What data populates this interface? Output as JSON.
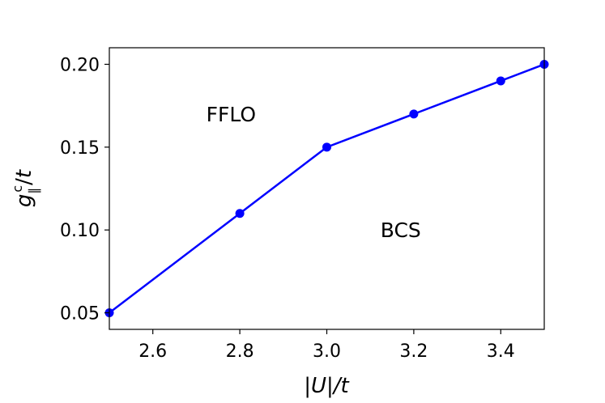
{
  "chart_data": {
    "type": "line",
    "x": [
      2.5,
      2.8,
      3.0,
      3.2,
      3.4,
      3.5
    ],
    "series": [
      {
        "values": [
          0.05,
          0.11,
          0.15,
          0.17,
          0.19,
          0.2
        ],
        "color": "#0000ff",
        "marker": "circle"
      }
    ],
    "xlabel": "|U|/t",
    "ylabel": "g∥c/t",
    "xlim": [
      2.5,
      3.5
    ],
    "ylim": [
      0.04,
      0.21
    ],
    "xticks": [
      2.6,
      2.8,
      3.0,
      3.2,
      3.4
    ],
    "xtick_labels": [
      "2.6",
      "2.8",
      "3.0",
      "3.2",
      "3.4"
    ],
    "yticks": [
      0.05,
      0.1,
      0.15,
      0.2
    ],
    "ytick_labels": [
      "0.05",
      "0.10",
      "0.15",
      "0.20"
    ],
    "grid": false,
    "annotations": [
      {
        "text": "FFLO",
        "x": 2.78,
        "y": 0.17
      },
      {
        "text": "BCS",
        "x": 3.17,
        "y": 0.1
      }
    ]
  }
}
